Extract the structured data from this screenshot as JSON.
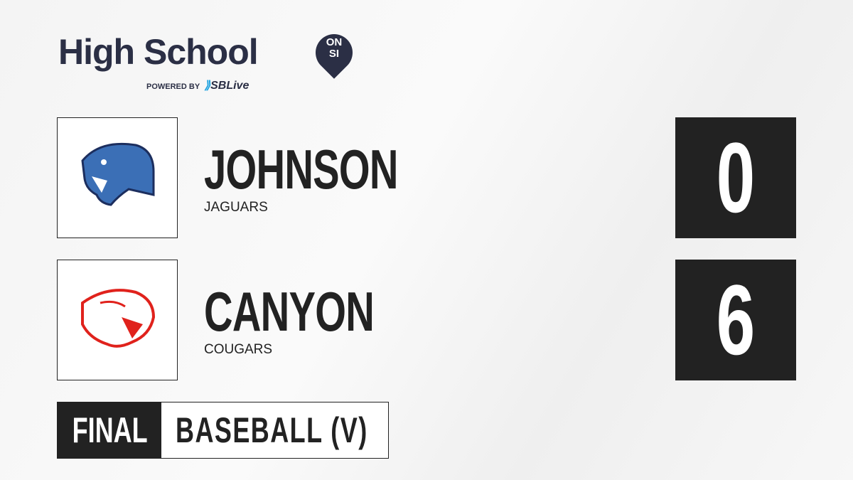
{
  "brand": {
    "title": "High School",
    "badge_top": "ON",
    "badge_bottom": "SI",
    "powered_by": "POWERED BY",
    "partner": "SBLive"
  },
  "teams": [
    {
      "name": "JOHNSON",
      "mascot": "JAGUARS",
      "score": "0",
      "logo": "jaguar-logo",
      "color": "#3b6fb6"
    },
    {
      "name": "CANYON",
      "mascot": "COUGARS",
      "score": "6",
      "logo": "cougar-logo",
      "color": "#e0221c"
    }
  ],
  "status": "FINAL",
  "sport": "BASEBALL (V)"
}
